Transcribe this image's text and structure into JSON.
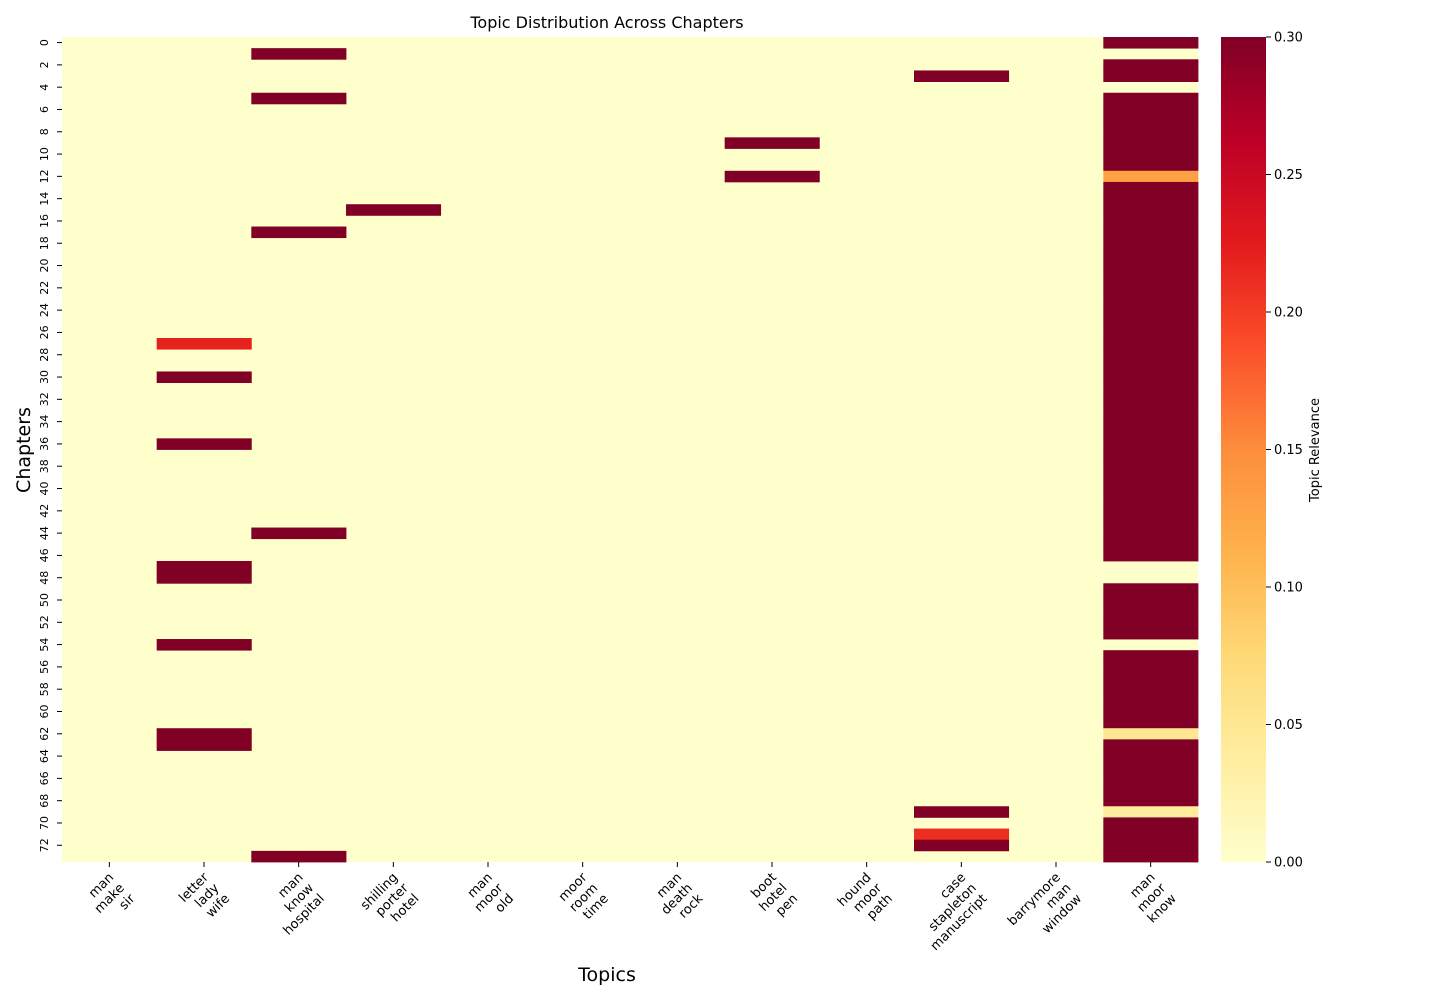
{
  "chart_data": {
    "type": "heatmap",
    "title": "Topic Distribution Across Chapters",
    "xlabel": "Topics",
    "ylabel": "Chapters",
    "colorbar_label": "Topic Relevance",
    "colorbar_ticks": [
      "0.00",
      "0.05",
      "0.10",
      "0.15",
      "0.20",
      "0.25",
      "0.30"
    ],
    "value_range": [
      0,
      0.3
    ],
    "colormap": "YlOrRd",
    "colormap_stops": [
      "#ffffcc",
      "#ffeda0",
      "#fed976",
      "#feb24c",
      "#fd8d3c",
      "#fc4e2a",
      "#e31a1c",
      "#bd0026",
      "#800026"
    ],
    "n_chapters": 74,
    "y_ticks": [
      "0",
      "2",
      "4",
      "6",
      "8",
      "10",
      "12",
      "14",
      "16",
      "18",
      "20",
      "22",
      "24",
      "26",
      "28",
      "30",
      "32",
      "34",
      "36",
      "38",
      "40",
      "42",
      "44",
      "46",
      "48",
      "50",
      "52",
      "54",
      "56",
      "58",
      "60",
      "62",
      "64",
      "66",
      "68",
      "70",
      "72"
    ],
    "topics": [
      [
        "man",
        "make",
        "sir"
      ],
      [
        "letter",
        "lady",
        "wife"
      ],
      [
        "man",
        "know",
        "hospital"
      ],
      [
        "shilling",
        "porter",
        "hotel"
      ],
      [
        "man",
        "moor",
        "old"
      ],
      [
        "moor",
        "room",
        "time"
      ],
      [
        "man",
        "death",
        "rock"
      ],
      [
        "boot",
        "hotel",
        "pen"
      ],
      [
        "hound",
        "moor",
        "path"
      ],
      [
        "case",
        "stapleton",
        "manuscript"
      ],
      [
        "barrymore",
        "man",
        "window"
      ],
      [
        "man",
        "moor",
        "know"
      ]
    ],
    "cells": [
      {
        "topic": 1,
        "chapter": 27,
        "value": 0.22
      },
      {
        "topic": 1,
        "chapter": 30,
        "value": 0.3
      },
      {
        "topic": 1,
        "chapter": 36,
        "value": 0.3
      },
      {
        "topic": 1,
        "chapter": 47,
        "value": 0.3
      },
      {
        "topic": 1,
        "chapter": 48,
        "value": 0.3
      },
      {
        "topic": 1,
        "chapter": 54,
        "value": 0.3
      },
      {
        "topic": 1,
        "chapter": 62,
        "value": 0.3
      },
      {
        "topic": 1,
        "chapter": 63,
        "value": 0.3
      },
      {
        "topic": 2,
        "chapter": 1,
        "value": 0.3
      },
      {
        "topic": 2,
        "chapter": 5,
        "value": 0.3
      },
      {
        "topic": 2,
        "chapter": 17,
        "value": 0.3
      },
      {
        "topic": 2,
        "chapter": 44,
        "value": 0.3
      },
      {
        "topic": 2,
        "chapter": 73,
        "value": 0.3
      },
      {
        "topic": 3,
        "chapter": 15,
        "value": 0.3
      },
      {
        "topic": 7,
        "chapter": 9,
        "value": 0.3
      },
      {
        "topic": 7,
        "chapter": 12,
        "value": 0.3
      },
      {
        "topic": 9,
        "chapter": 3,
        "value": 0.3
      },
      {
        "topic": 9,
        "chapter": 69,
        "value": 0.3
      },
      {
        "topic": 9,
        "chapter": 71,
        "value": 0.21
      },
      {
        "topic": 9,
        "chapter": 72,
        "value": 0.3
      }
    ],
    "last_topic_column": {
      "topic": 11,
      "default_value": 0.3,
      "exceptions": [
        {
          "chapter": 1,
          "value": 0.0
        },
        {
          "chapter": 4,
          "value": 0.0
        },
        {
          "chapter": 12,
          "value": 0.13
        },
        {
          "chapter": 47,
          "value": 0.0
        },
        {
          "chapter": 48,
          "value": 0.0
        },
        {
          "chapter": 54,
          "value": 0.0
        },
        {
          "chapter": 62,
          "value": 0.05
        },
        {
          "chapter": 69,
          "value": 0.04
        }
      ]
    }
  }
}
